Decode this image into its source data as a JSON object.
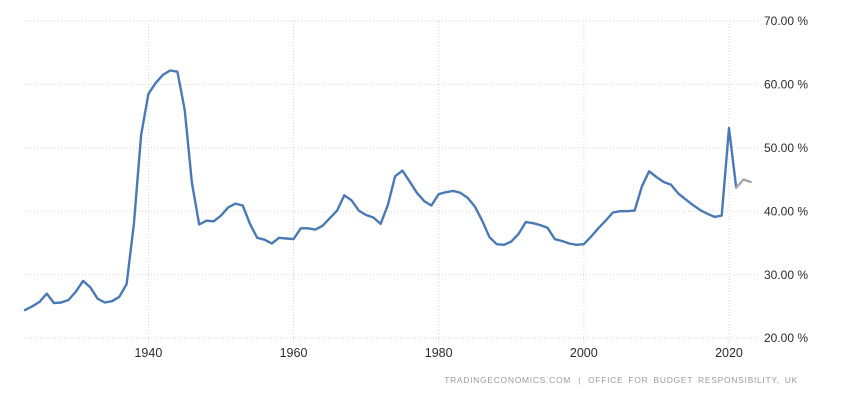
{
  "page": {
    "background": "#ffffff"
  },
  "chart_data": {
    "type": "line",
    "title": "",
    "x_axis": {
      "ticks": [
        1940,
        1960,
        1980,
        2000,
        2020
      ],
      "range": [
        1923,
        2024
      ]
    },
    "y_axis": {
      "range": [
        20,
        70
      ],
      "ticks": [
        {
          "value": 70,
          "label": "70.00 %"
        },
        {
          "value": 60,
          "label": "60.00 %"
        },
        {
          "value": 50,
          "label": "50.00 %"
        },
        {
          "value": 40,
          "label": "40.00 %"
        },
        {
          "value": 30,
          "label": "30.00 %"
        },
        {
          "value": 20,
          "label": "20.00 %"
        }
      ]
    },
    "grid": {
      "style": "dotted",
      "color": "#d6d6d6",
      "tick_text_color": "#2b2b2b"
    },
    "legend": "none",
    "series": [
      {
        "name": "historical",
        "color": "#4a7ab5",
        "start_year": 1923,
        "values": [
          24.4,
          25.0,
          25.7,
          27.0,
          25.5,
          25.6,
          26.0,
          27.3,
          29.0,
          28.0,
          26.2,
          25.6,
          25.8,
          26.5,
          28.5,
          38.0,
          52.0,
          58.5,
          60.2,
          61.5,
          62.2,
          62.0,
          56.0,
          44.5,
          37.9,
          38.5,
          38.4,
          39.3,
          40.6,
          41.2,
          40.9,
          38.0,
          35.8,
          35.5,
          34.9,
          35.8,
          35.7,
          35.6,
          37.3,
          37.3,
          37.1,
          37.7,
          38.9,
          40.1,
          42.5,
          41.7,
          40.1,
          39.4,
          39.0,
          38.0,
          41.0,
          45.5,
          46.4,
          44.7,
          42.9,
          41.6,
          40.9,
          42.7,
          43.0,
          43.2,
          42.9,
          42.1,
          40.7,
          38.5,
          35.9,
          34.8,
          34.7,
          35.2,
          36.4,
          38.3,
          38.1,
          37.8,
          37.4,
          35.6,
          35.3,
          34.9,
          34.7,
          34.8,
          36.0,
          37.3,
          38.5,
          39.8,
          40.0,
          40.0,
          40.1,
          43.9,
          46.3,
          45.4,
          44.6,
          44.2,
          42.8,
          41.9,
          41.0,
          40.2,
          39.6,
          39.1,
          39.3,
          53.1,
          43.7
        ]
      },
      {
        "name": "forecast",
        "color": "#a6a6a6",
        "years": [
          2021,
          2022,
          2023
        ],
        "values": [
          43.7,
          45.0,
          44.6
        ]
      }
    ]
  },
  "footer": {
    "attribution_left": "TRADINGECONOMICS.COM",
    "attribution_separator": "|",
    "attribution_right": "OFFICE FOR BUDGET RESPONSIBILITY, UK"
  }
}
